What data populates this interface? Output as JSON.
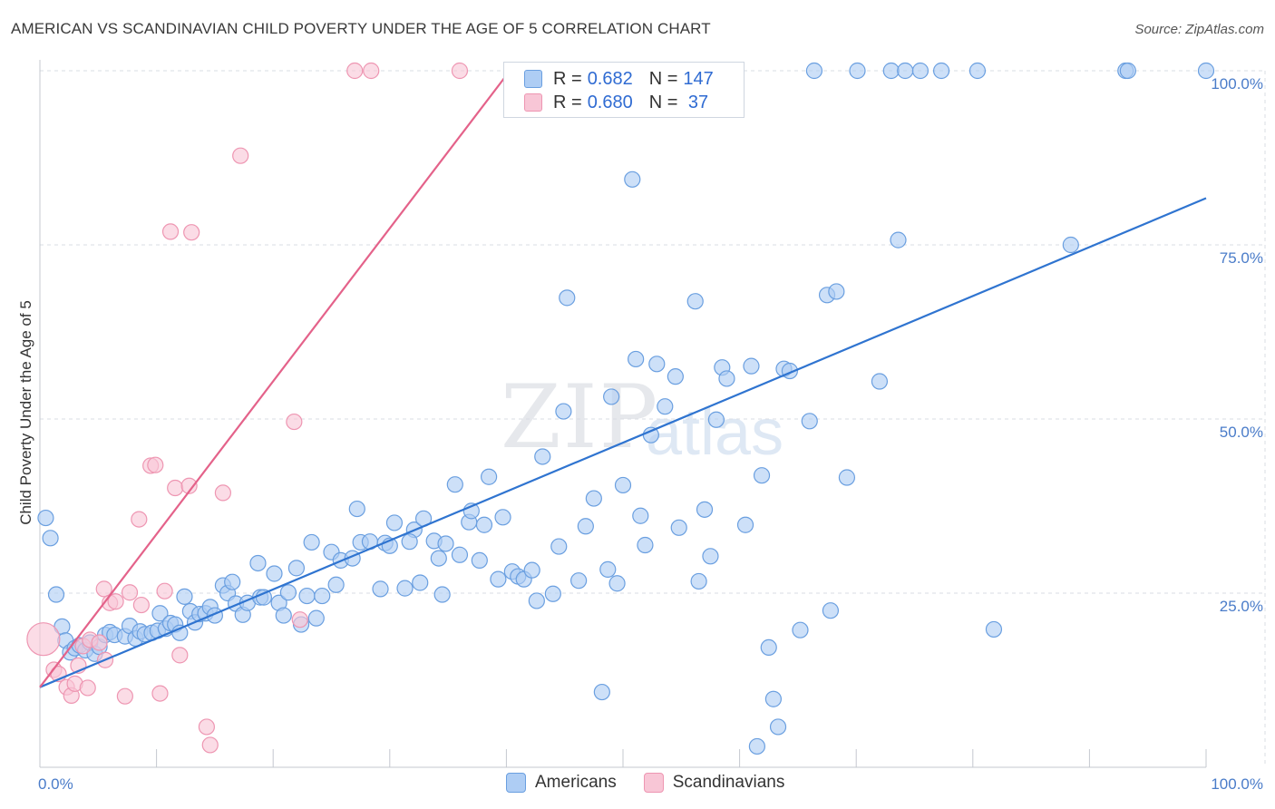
{
  "title": "AMERICAN VS SCANDINAVIAN CHILD POVERTY UNDER THE AGE OF 5 CORRELATION CHART",
  "source": "Source: ZipAtlas.com",
  "watermark": {
    "zip": "ZIP",
    "atlas": "atlas"
  },
  "legend": {
    "rows": [
      {
        "r_label": "R = ",
        "r_value": "0.682",
        "n_label": "N = ",
        "n_value": "147"
      },
      {
        "r_label": "R = ",
        "r_value": "0.680",
        "n_label": "N = ",
        "n_value": " 37"
      }
    ]
  },
  "bottom_legend": [
    "Americans",
    "Scandinavians"
  ],
  "colors": {
    "americans_fill": "#aecdf4",
    "americans_stroke": "#6a9fe0",
    "americans_line": "#2f74d0",
    "scandinavians_fill": "#f8c6d6",
    "scandinavians_stroke": "#ee96b2",
    "scandinavians_line": "#e4628a",
    "grid": "#dadde3",
    "tick_text": "#4a7cc9"
  },
  "chart_data": {
    "type": "scatter",
    "title": "AMERICAN VS SCANDINAVIAN CHILD POVERTY UNDER THE AGE OF 5 CORRELATION CHART",
    "xlabel": "",
    "ylabel": "Child Poverty Under the Age of 5",
    "xlim": [
      0,
      100
    ],
    "ylim": [
      0,
      100
    ],
    "x_tick_labels": [
      "0.0%",
      "100.0%"
    ],
    "y_tick_labels": [
      "25.0%",
      "50.0%",
      "75.0%",
      "100.0%"
    ],
    "y_ticks": [
      25,
      50,
      75,
      100
    ],
    "grid": true,
    "series": [
      {
        "name": "Americans",
        "r": 0.682,
        "n": 147,
        "trend": {
          "x": [
            0,
            100
          ],
          "y": [
            11.5,
            81.7
          ]
        },
        "points": [
          [
            0.5,
            35.8
          ],
          [
            0.9,
            32.9
          ],
          [
            1.4,
            24.8
          ],
          [
            1.9,
            20.2
          ],
          [
            2.2,
            18.2
          ],
          [
            2.6,
            16.5
          ],
          [
            3.0,
            17.1
          ],
          [
            3.4,
            17.5
          ],
          [
            3.9,
            16.8
          ],
          [
            4.3,
            17.9
          ],
          [
            4.7,
            16.3
          ],
          [
            5.1,
            17.3
          ],
          [
            5.6,
            19.0
          ],
          [
            6.0,
            19.4
          ],
          [
            6.4,
            19.0
          ],
          [
            7.3,
            18.8
          ],
          [
            7.7,
            20.3
          ],
          [
            8.2,
            18.5
          ],
          [
            8.6,
            19.5
          ],
          [
            9.0,
            19.1
          ],
          [
            9.6,
            19.3
          ],
          [
            10.1,
            19.6
          ],
          [
            10.3,
            22.1
          ],
          [
            10.8,
            19.9
          ],
          [
            11.2,
            20.7
          ],
          [
            11.6,
            20.5
          ],
          [
            12.0,
            19.3
          ],
          [
            12.4,
            24.5
          ],
          [
            12.9,
            22.4
          ],
          [
            13.3,
            20.8
          ],
          [
            13.7,
            22.0
          ],
          [
            14.2,
            22.1
          ],
          [
            14.6,
            23.0
          ],
          [
            15.0,
            21.8
          ],
          [
            15.7,
            26.1
          ],
          [
            16.1,
            25.0
          ],
          [
            16.5,
            26.6
          ],
          [
            16.8,
            23.5
          ],
          [
            17.4,
            21.9
          ],
          [
            17.8,
            23.6
          ],
          [
            18.9,
            24.4
          ],
          [
            18.7,
            29.3
          ],
          [
            19.2,
            24.4
          ],
          [
            20.1,
            27.8
          ],
          [
            20.5,
            23.6
          ],
          [
            20.9,
            21.8
          ],
          [
            21.3,
            25.1
          ],
          [
            22.0,
            28.6
          ],
          [
            22.4,
            20.5
          ],
          [
            22.9,
            24.6
          ],
          [
            23.3,
            32.3
          ],
          [
            23.7,
            21.4
          ],
          [
            24.2,
            24.6
          ],
          [
            25.0,
            30.9
          ],
          [
            25.4,
            26.2
          ],
          [
            25.8,
            29.7
          ],
          [
            26.8,
            30.0
          ],
          [
            27.2,
            37.1
          ],
          [
            27.5,
            32.3
          ],
          [
            28.3,
            32.4
          ],
          [
            29.2,
            25.6
          ],
          [
            29.6,
            32.2
          ],
          [
            30.0,
            31.8
          ],
          [
            30.4,
            35.1
          ],
          [
            31.3,
            25.7
          ],
          [
            32.1,
            34.1
          ],
          [
            31.7,
            32.4
          ],
          [
            32.6,
            26.5
          ],
          [
            32.9,
            35.7
          ],
          [
            33.8,
            32.5
          ],
          [
            34.2,
            30.0
          ],
          [
            34.5,
            24.8
          ],
          [
            34.8,
            32.1
          ],
          [
            35.6,
            40.6
          ],
          [
            36.0,
            30.5
          ],
          [
            36.8,
            35.2
          ],
          [
            37.0,
            36.8
          ],
          [
            37.7,
            29.7
          ],
          [
            38.1,
            34.8
          ],
          [
            38.5,
            41.7
          ],
          [
            39.3,
            27.0
          ],
          [
            39.7,
            35.9
          ],
          [
            40.5,
            28.1
          ],
          [
            41.0,
            27.4
          ],
          [
            41.5,
            27.0
          ],
          [
            42.2,
            28.3
          ],
          [
            42.6,
            23.9
          ],
          [
            43.1,
            44.6
          ],
          [
            44.0,
            24.9
          ],
          [
            44.5,
            31.7
          ],
          [
            44.9,
            51.1
          ],
          [
            45.2,
            67.4
          ],
          [
            46.2,
            26.8
          ],
          [
            46.8,
            34.6
          ],
          [
            47.5,
            38.6
          ],
          [
            48.2,
            10.8
          ],
          [
            48.7,
            28.4
          ],
          [
            49.0,
            53.2
          ],
          [
            49.5,
            26.4
          ],
          [
            50.0,
            40.5
          ],
          [
            50.8,
            84.4
          ],
          [
            51.1,
            58.6
          ],
          [
            51.5,
            36.1
          ],
          [
            51.9,
            31.9
          ],
          [
            52.4,
            47.7
          ],
          [
            52.9,
            57.9
          ],
          [
            53.6,
            51.8
          ],
          [
            54.5,
            56.1
          ],
          [
            54.8,
            34.4
          ],
          [
            55.0,
            99.9
          ],
          [
            55.9,
            96.2
          ],
          [
            56.2,
            66.9
          ],
          [
            56.5,
            26.7
          ],
          [
            57.0,
            37.0
          ],
          [
            57.5,
            30.3
          ],
          [
            58.0,
            49.9
          ],
          [
            58.5,
            57.4
          ],
          [
            58.9,
            55.8
          ],
          [
            59.1,
            100.0
          ],
          [
            60.5,
            34.8
          ],
          [
            61.0,
            57.6
          ],
          [
            61.5,
            3.0
          ],
          [
            61.9,
            41.9
          ],
          [
            62.5,
            17.2
          ],
          [
            62.9,
            9.8
          ],
          [
            63.3,
            5.8
          ],
          [
            63.8,
            57.2
          ],
          [
            64.3,
            56.9
          ],
          [
            65.2,
            19.7
          ],
          [
            66.0,
            49.7
          ],
          [
            66.4,
            100.0
          ],
          [
            67.5,
            67.8
          ],
          [
            67.8,
            22.5
          ],
          [
            68.3,
            68.3
          ],
          [
            69.2,
            41.6
          ],
          [
            70.1,
            100.0
          ],
          [
            72.0,
            55.4
          ],
          [
            73.0,
            100.0
          ],
          [
            73.6,
            75.7
          ],
          [
            74.2,
            100.0
          ],
          [
            75.5,
            100.0
          ],
          [
            77.3,
            100.0
          ],
          [
            80.4,
            100.0
          ],
          [
            81.8,
            19.8
          ],
          [
            88.4,
            75.0
          ],
          [
            93.1,
            100.0
          ],
          [
            93.3,
            100.0
          ],
          [
            100.0,
            100.0
          ]
        ]
      },
      {
        "name": "Scandinavians",
        "r": 0.68,
        "n": 37,
        "trend": {
          "x": [
            0,
            40.3
          ],
          "y": [
            11.5,
            100.0
          ]
        },
        "points": [
          [
            0.3,
            18.4
          ],
          [
            1.2,
            14.0
          ],
          [
            1.6,
            13.4
          ],
          [
            2.3,
            11.5
          ],
          [
            2.7,
            10.3
          ],
          [
            3.0,
            12.0
          ],
          [
            3.3,
            14.6
          ],
          [
            3.7,
            17.4
          ],
          [
            4.1,
            11.4
          ],
          [
            4.3,
            18.3
          ],
          [
            5.1,
            17.9
          ],
          [
            5.6,
            15.4
          ],
          [
            5.5,
            25.6
          ],
          [
            6.0,
            23.6
          ],
          [
            6.5,
            23.8
          ],
          [
            7.3,
            10.2
          ],
          [
            7.7,
            25.1
          ],
          [
            8.5,
            35.6
          ],
          [
            8.7,
            23.3
          ],
          [
            9.5,
            43.3
          ],
          [
            9.9,
            43.4
          ],
          [
            10.3,
            10.6
          ],
          [
            10.7,
            25.3
          ],
          [
            11.2,
            76.9
          ],
          [
            11.6,
            40.1
          ],
          [
            12.0,
            16.1
          ],
          [
            12.8,
            40.4
          ],
          [
            13.0,
            76.8
          ],
          [
            14.3,
            5.8
          ],
          [
            14.6,
            3.2
          ],
          [
            15.7,
            39.4
          ],
          [
            17.2,
            87.8
          ],
          [
            21.8,
            49.6
          ],
          [
            22.3,
            21.2
          ],
          [
            27.0,
            100.0
          ],
          [
            28.4,
            100.0
          ],
          [
            36.0,
            100.0
          ]
        ],
        "sizes": {
          "0": 18
        }
      }
    ]
  }
}
